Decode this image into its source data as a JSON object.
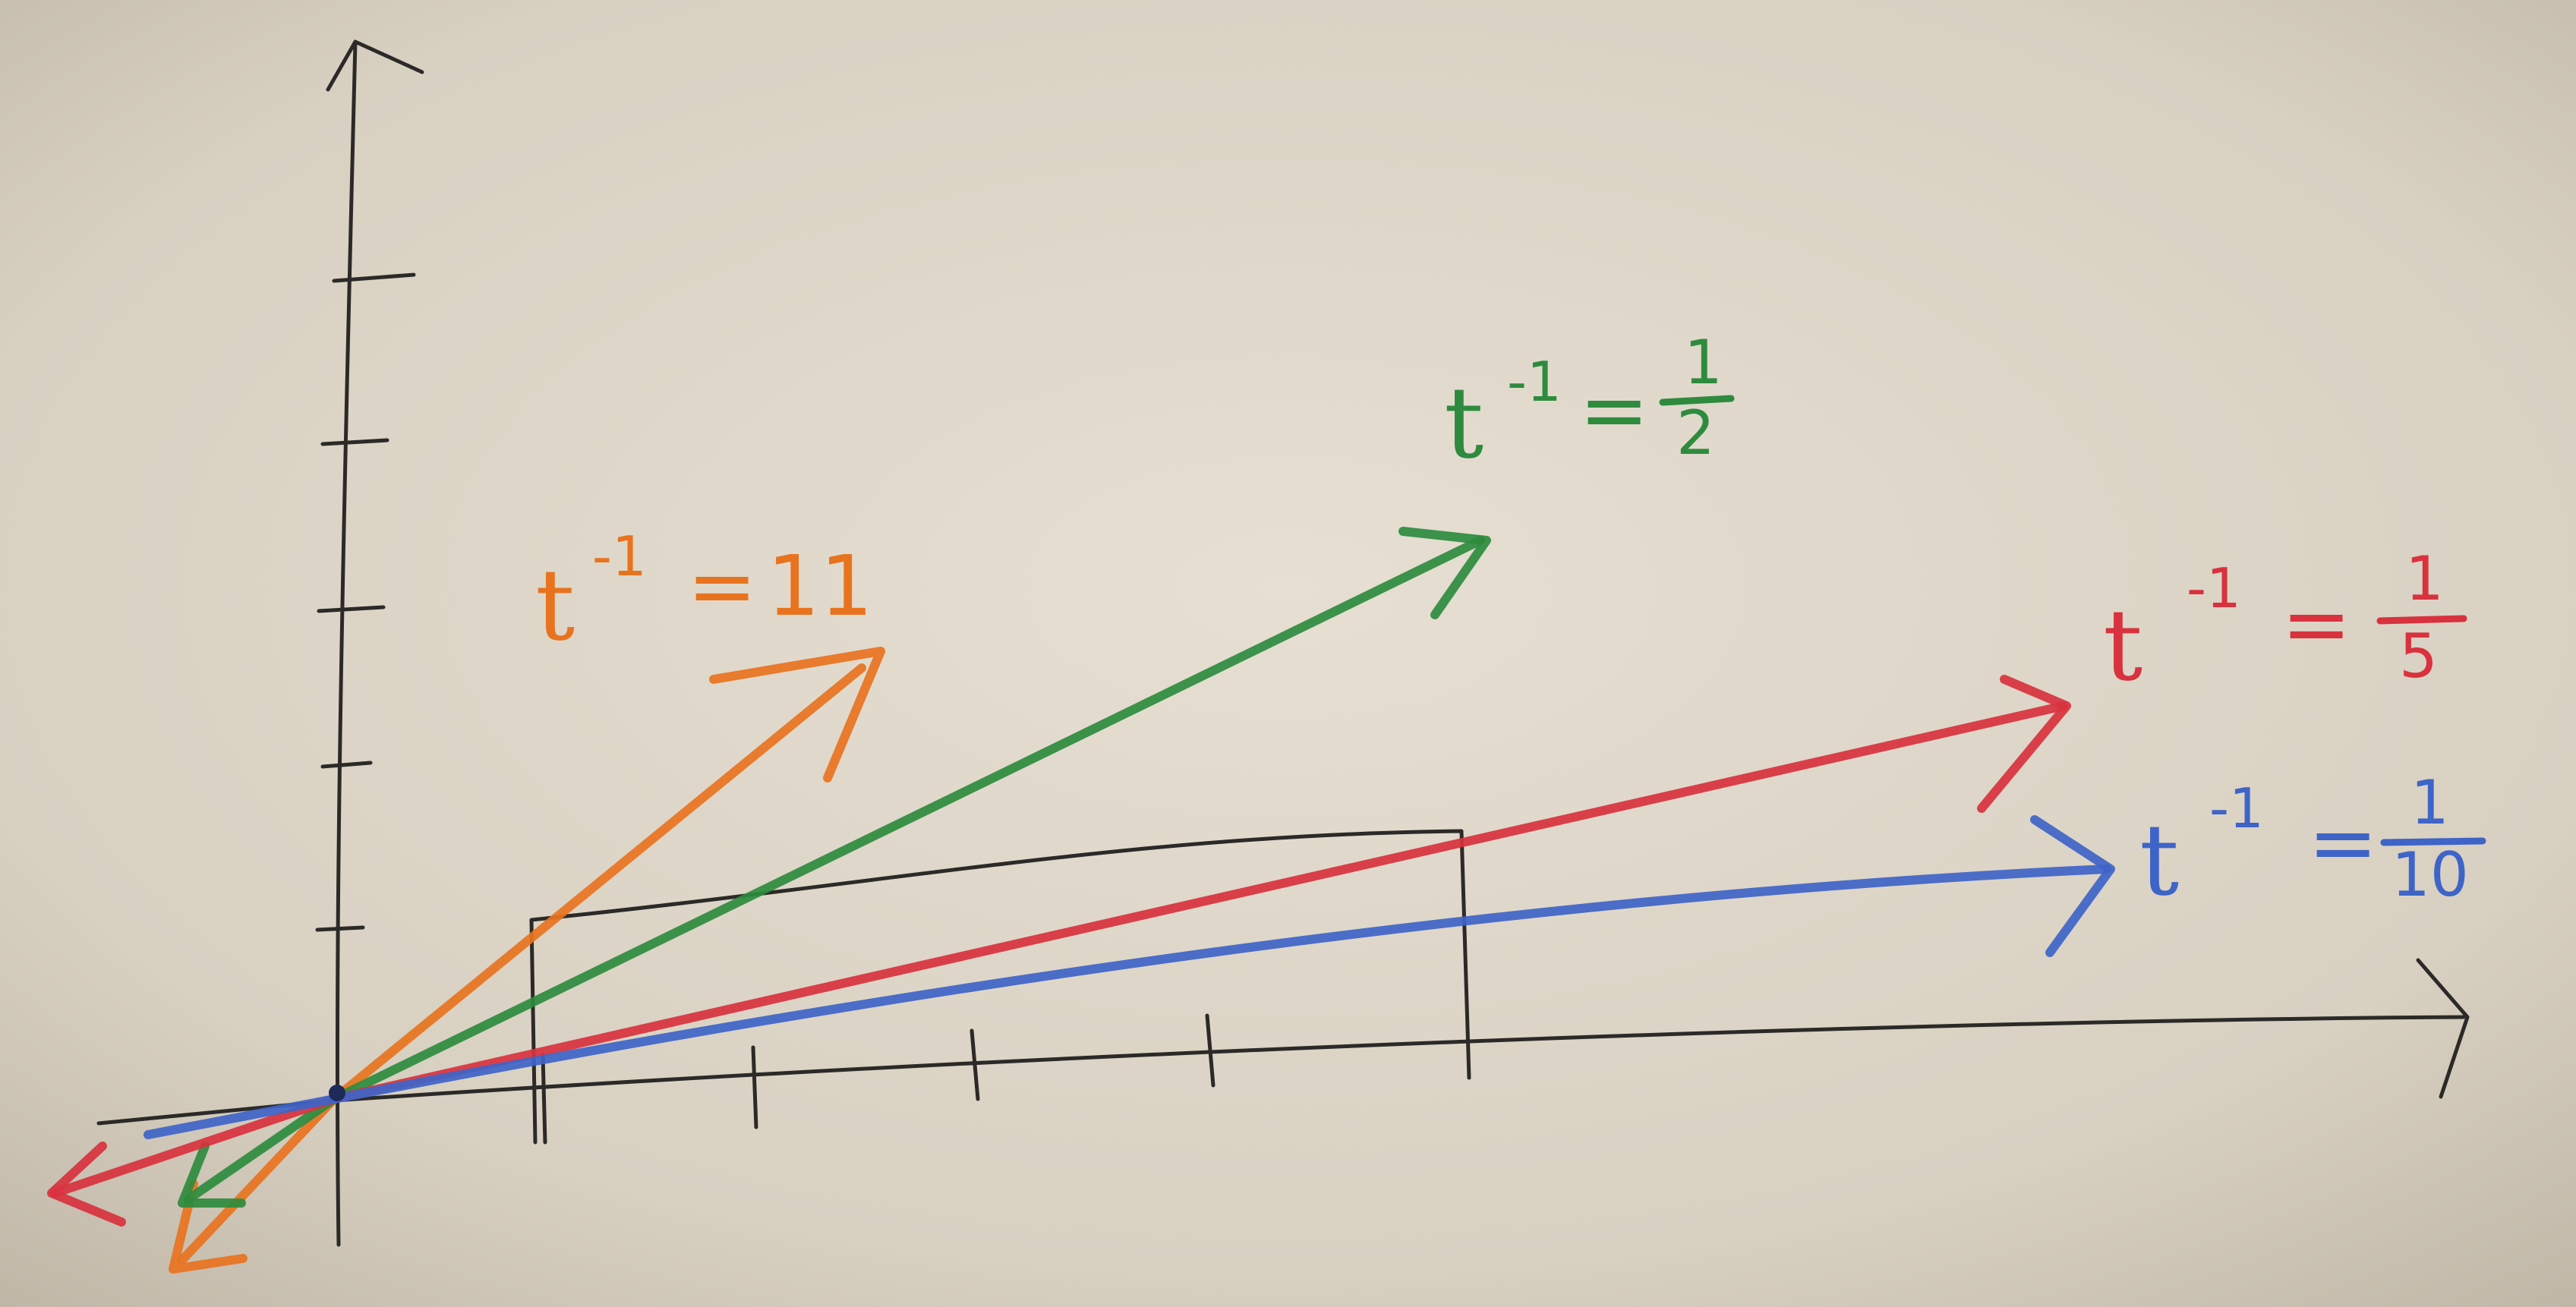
{
  "colors": {
    "paper": "#d9d2c4",
    "pencil": "#2c2a28",
    "orange": "#e8731f",
    "green": "#2e8b3e",
    "red": "#d8323e",
    "blue": "#3e64c8"
  },
  "rays": [
    {
      "id": "orange",
      "color": "#e8731f",
      "t": "t",
      "exp": "-1",
      "eq": "=",
      "value": "11",
      "num": "",
      "den": ""
    },
    {
      "id": "green",
      "color": "#2e8b3e",
      "t": "t",
      "exp": "-1",
      "eq": "=",
      "value": "",
      "num": "1",
      "den": "2"
    },
    {
      "id": "red",
      "color": "#d8323e",
      "t": "t",
      "exp": "-1",
      "eq": "=",
      "value": "",
      "num": "1",
      "den": "5"
    },
    {
      "id": "blue",
      "color": "#3e64c8",
      "t": "t",
      "exp": "-1",
      "eq": "=",
      "value": "",
      "num": "1",
      "den": "10"
    }
  ]
}
